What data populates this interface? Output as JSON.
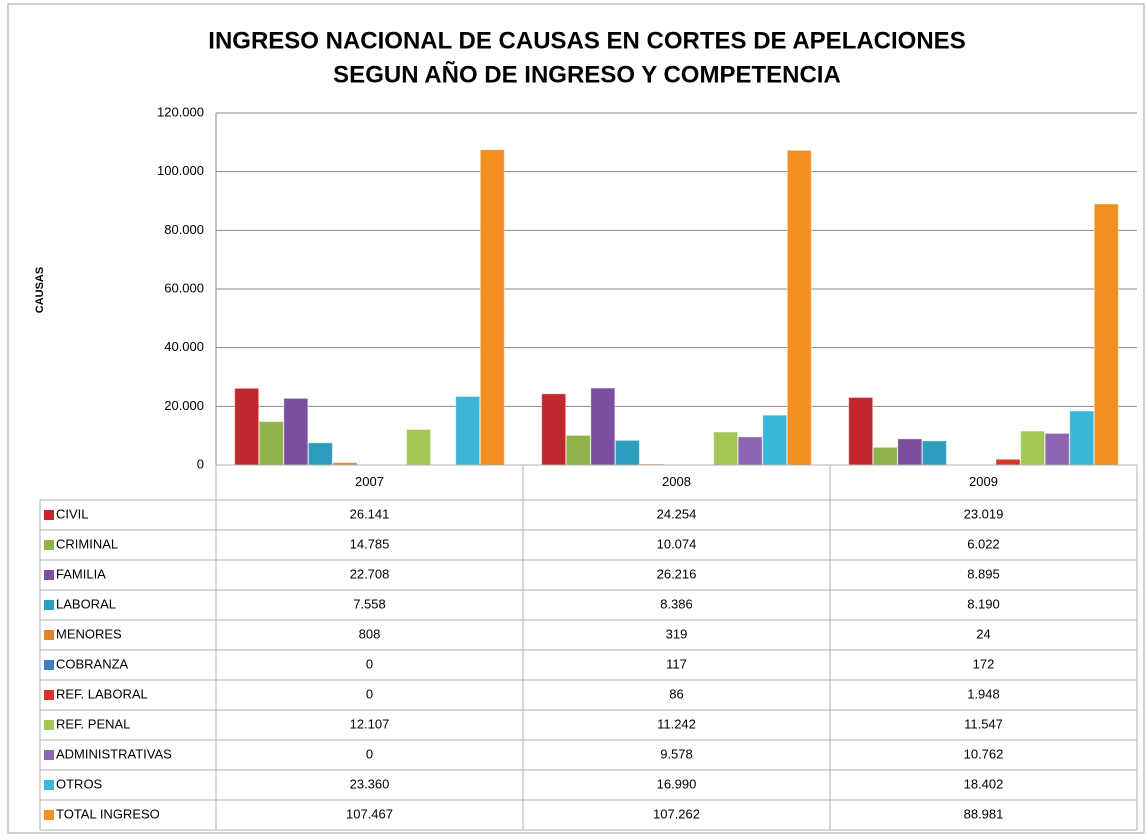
{
  "chart_data": {
    "type": "bar",
    "title": "INGRESO NACIONAL DE CAUSAS EN CORTES DE APELACIONES",
    "subtitle": "SEGUN AÑO DE INGRESO Y COMPETENCIA",
    "y_label": "CAUSAS",
    "categories": [
      "2007",
      "2008",
      "2009"
    ],
    "ylim": [
      0,
      120000
    ],
    "yticks": [
      0,
      {
        "value": 20000,
        "label": "20.000"
      },
      {
        "value": 40000,
        "label": "40.000"
      },
      {
        "value": 60000,
        "label": "60.000"
      },
      {
        "value": 80000,
        "label": "80.000"
      },
      {
        "value": 100000,
        "label": "100.000"
      },
      {
        "value": 120000,
        "label": "120.000"
      }
    ],
    "grid": true,
    "series": [
      {
        "name": "CIVIL",
        "color": "#c0282d",
        "values": [
          26141,
          24254,
          23019
        ],
        "value_labels": [
          "26.141",
          "24.254",
          "23.019"
        ]
      },
      {
        "name": "CRIMINAL",
        "color": "#8db34a",
        "values": [
          14785,
          10074,
          6022
        ],
        "value_labels": [
          "14.785",
          "10.074",
          "6.022"
        ]
      },
      {
        "name": "FAMILIA",
        "color": "#7a4f9e",
        "values": [
          22708,
          26216,
          8895
        ],
        "value_labels": [
          "22.708",
          "26.216",
          "8.895"
        ]
      },
      {
        "name": "LABORAL",
        "color": "#2c9dbd",
        "values": [
          7558,
          8386,
          8190
        ],
        "value_labels": [
          "7.558",
          "8.386",
          "8.190"
        ]
      },
      {
        "name": "MENORES",
        "color": "#e2832a",
        "values": [
          808,
          319,
          24
        ],
        "value_labels": [
          "808",
          "319",
          "24"
        ]
      },
      {
        "name": "COBRANZA",
        "color": "#3e7fc4",
        "values": [
          0,
          117,
          172
        ],
        "value_labels": [
          "0",
          "117",
          "172"
        ]
      },
      {
        "name": "REF. LABORAL",
        "color": "#d7342f",
        "values": [
          0,
          86,
          1948
        ],
        "value_labels": [
          "0",
          "86",
          "1.948"
        ]
      },
      {
        "name": "REF. PENAL",
        "color": "#a2c754",
        "values": [
          12107,
          11242,
          11547
        ],
        "value_labels": [
          "12.107",
          "11.242",
          "11.547"
        ]
      },
      {
        "name": "ADMINISTRATIVAS",
        "color": "#8c66b2",
        "values": [
          0,
          9578,
          10762
        ],
        "value_labels": [
          "0",
          "9.578",
          "10.762"
        ]
      },
      {
        "name": "OTROS",
        "color": "#3cb6d8",
        "values": [
          23360,
          16990,
          18402
        ],
        "value_labels": [
          "23.360",
          "16.990",
          "18.402"
        ]
      },
      {
        "name": "TOTAL INGRESO",
        "color": "#f18f22",
        "values": [
          107467,
          107262,
          88981
        ],
        "value_labels": [
          "107.467",
          "107.262",
          "88.981"
        ]
      }
    ]
  }
}
